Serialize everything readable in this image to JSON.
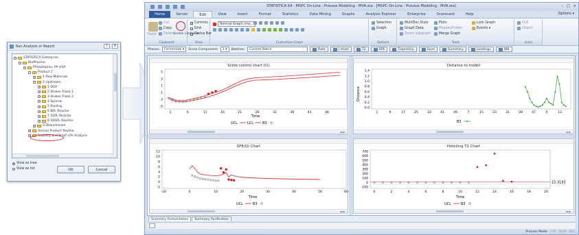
{
  "dialog": {
    "title": "Run Analysis or Report",
    "title_buttons": [
      "?",
      "×"
    ],
    "tree": [
      {
        "depth": 0,
        "expander": "−",
        "label": "STATISTICA Enterprise"
      },
      {
        "depth": 1,
        "expander": "−",
        "label": "BioPharma"
      },
      {
        "depth": 2,
        "expander": "−",
        "label": "Philadelphia, PA USA"
      },
      {
        "depth": 3,
        "expander": "−",
        "label": "Product 1"
      },
      {
        "depth": 4,
        "expander": "+",
        "label": "1 Raw Materials"
      },
      {
        "depth": 4,
        "expander": "−",
        "label": "2 Upstream"
      },
      {
        "depth": 5,
        "expander": "+",
        "label": "1 OOF"
      },
      {
        "depth": 5,
        "expander": "+",
        "label": "2 Shaker Flask 1"
      },
      {
        "depth": 5,
        "expander": "+",
        "label": "3 Shaker Flask 2"
      },
      {
        "depth": 5,
        "expander": "+",
        "label": "4 Spinner"
      },
      {
        "depth": 5,
        "expander": "+",
        "label": "5 Pooling"
      },
      {
        "depth": 5,
        "expander": "+",
        "label": "6 80L Reactor"
      },
      {
        "depth": 5,
        "expander": "+",
        "label": "7 500L Reactor"
      },
      {
        "depth": 5,
        "expander": "+",
        "label": "8 5000L Reactor"
      },
      {
        "depth": 4,
        "expander": "+",
        "label": "3 Downstream"
      },
      {
        "depth": 3,
        "expander": "+",
        "label": "Annual Product Review"
      },
      {
        "depth": 3,
        "expander": "+",
        "label": "Stability and Shelf Life Analysis"
      }
    ],
    "view_as_tree": "View as tree",
    "view_as_list": "View as list",
    "view_selected": "tree",
    "ok": "OK",
    "cancel": "Cancel"
  },
  "app": {
    "title": "STATISTICA 64 - MSPC On-Line : Process Modeling - MVA.sta - [MSPC On-Line : Process Modeling - MVA.sta]",
    "window_controls": [
      "–",
      "□",
      "×"
    ],
    "tabs": [
      "Home",
      "Server",
      "Edit",
      "View",
      "Insert",
      "Format",
      "Statistics",
      "Data Mining",
      "Graphs",
      "Analysis Explorer",
      "Enterprise",
      "Scorecard",
      "Help"
    ],
    "active_tab": "Edit",
    "options": "Options ▾",
    "ribbon": {
      "clipboard": {
        "label": "Clipboard",
        "paste": "Paste",
        "cut": "Cut",
        "copy": "Copy",
        "delete": "Delete",
        "screen_catcher": "Screen Catcher ▾"
      },
      "view": {
        "label": "View",
        "controls": "Controls",
        "grid": "Grid",
        "status_bar": "Status Bar"
      },
      "customize": {
        "label": "Customize Graph",
        "mode": "Normal Graph (mo..."
      },
      "options": {
        "label": "Options",
        "selection": "Selection",
        "graph": "Graph"
      },
      "tools": {
        "label": "Tools",
        "multidoc": "MultiDoc Style",
        "graph_data": "Graph Data",
        "zoom": "Zoom subgraph",
        "plots": "Plots",
        "header_footer": "Header/Footer",
        "merge": "Merge Graph",
        "lock": "Lock Graph",
        "events": "Events ▾"
      },
      "links": {
        "label": "Links",
        "ole": "OLE",
        "object": "Object"
      }
    },
    "phasebar": {
      "phases_label": "Phases:",
      "phases_value": "Fermentati ▾",
      "score_label": "Score Component:",
      "score_value": "1 ▾",
      "batches_label": "Batches:",
      "batches_value": "Current Batch",
      "buttons": [
        "Rate",
        "I chart",
        "T2",
        "SPE",
        "Trajectory",
        "Save",
        "Summary",
        "Loadings",
        "WB"
      ]
    },
    "sheet_tabs": [
      "Summary Fermentation",
      "Summary Purification"
    ],
    "status": {
      "mode": "Process Mode",
      "caps": "CAP",
      "num": "NUM",
      "rec": "REC"
    }
  },
  "colors": {
    "accent": "#2f5aa0",
    "ucl": "#d82020",
    "series": "#2e9e2e",
    "points": "#e01010"
  },
  "charts": {
    "score": {
      "title": "Score control chart (t1)",
      "xlabel": "Time",
      "legend": [
        "UCL",
        "LCL",
        "B3"
      ],
      "xticks": [
        "1",
        "6",
        "11",
        "16",
        "21",
        "26",
        "31",
        "36",
        "41",
        "46"
      ],
      "yticks": [
        "5",
        "3",
        "1",
        "-1",
        "-3",
        "-5"
      ]
    },
    "distance": {
      "title": "Distance to model",
      "ylabel": "Distance",
      "legend": [
        "B3"
      ],
      "xticks": [
        "1",
        "9",
        "17",
        "25",
        "33",
        "41",
        "49",
        "7",
        "15",
        "23",
        "31",
        "39",
        "47",
        "5",
        "13"
      ],
      "yticks": [
        "1.4",
        "1.2",
        "1.0",
        "0.8",
        "0.6",
        "0.4",
        "0.2",
        "0.0"
      ]
    },
    "spe": {
      "title": "SPE(Q) Chart",
      "xlabel": "Time",
      "legend": [
        "UCL",
        "B3"
      ],
      "xticks": [
        "-10",
        "0",
        "10",
        "20",
        "30",
        "40",
        "50",
        "60"
      ],
      "yticks": [
        "12",
        "10",
        "8",
        "6",
        "4",
        "2",
        "0",
        "-2"
      ]
    },
    "hotelling": {
      "title": "Hotelling T2 Chart",
      "xlabel": "Time",
      "legend": [
        "UCL",
        "B3"
      ],
      "limit_label": "15.3193",
      "xticks": [
        "0",
        "2",
        "4",
        "6",
        "8",
        "10",
        "12",
        "14",
        "16",
        "18",
        "20"
      ],
      "yticks": [
        "700",
        "600",
        "500",
        "400",
        "300",
        "200",
        "100",
        "0",
        "-100"
      ]
    }
  }
}
